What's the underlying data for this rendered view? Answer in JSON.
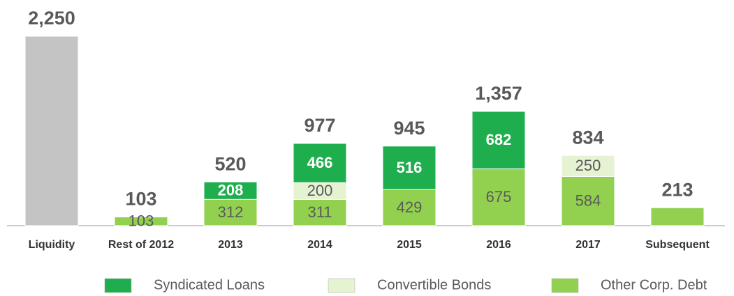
{
  "chart_data": {
    "type": "stacked_bar",
    "categories": [
      "Liquidity",
      "Rest of 2012",
      "2013",
      "2014",
      "2015",
      "2016",
      "2017",
      "Subsequent"
    ],
    "series": [
      {
        "color": "#c4c4c4",
        "values": [
          2250,
          null,
          null,
          null,
          null,
          null,
          null,
          null
        ]
      },
      {
        "name": "Other Corp. Debt",
        "color": "#92d050",
        "values": [
          null,
          103,
          312,
          311,
          429,
          675,
          584,
          213
        ],
        "value_labels": [
          null,
          "103",
          "312",
          "311",
          "429",
          "675",
          "584",
          null
        ]
      },
      {
        "name": "Convertible Bonds",
        "color": "#e6f3d2",
        "values": [
          null,
          null,
          null,
          200,
          null,
          null,
          250,
          null
        ],
        "value_labels": [
          null,
          null,
          null,
          "200",
          null,
          null,
          "250",
          null
        ]
      },
      {
        "name": "Syndicated Loans",
        "color": "#1fae4e",
        "values": [
          null,
          null,
          208,
          466,
          516,
          682,
          null,
          null
        ],
        "value_labels": [
          null,
          null,
          "208",
          "466",
          "516",
          "682",
          null,
          null
        ]
      }
    ],
    "totals": {
      "values": [
        2250,
        103,
        520,
        977,
        945,
        1357,
        834,
        213
      ],
      "value_labels": [
        "2,250",
        "103",
        "520",
        "977",
        "945",
        "1,357",
        "834",
        "213"
      ]
    },
    "legend": "bottom"
  }
}
